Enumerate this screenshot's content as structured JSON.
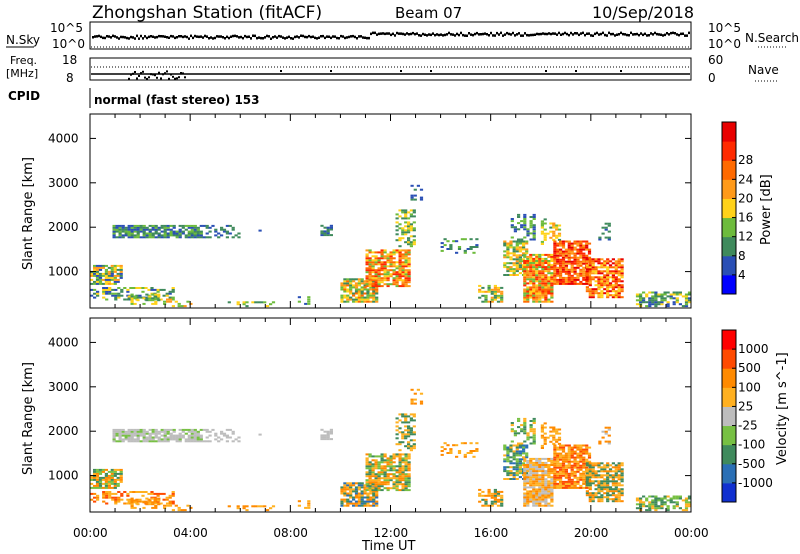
{
  "header": {
    "station": "Zhongshan Station (fitACF)",
    "beam": "Beam 07",
    "date": "10/Sep/2018"
  },
  "small_panels": {
    "nsky_label": "N.Sky",
    "nsearch_label": "N.Search",
    "nsky_ticks": [
      "10^5",
      "10^0"
    ],
    "nsearch_ticks": [
      "10^5",
      "10^0"
    ],
    "freq_label_line1": "Freq.",
    "freq_label_line2": "[MHz]",
    "freq_ticks": [
      "18",
      "8"
    ],
    "nave_label": "Nave",
    "nave_ticks": [
      "60",
      "0"
    ],
    "cpid_label": "CPID",
    "cpid_text": "normal (fast stereo) 153"
  },
  "chart_data": [
    {
      "type": "heatmap",
      "title": "",
      "xlabel": "Time UT",
      "ylabel": "Slant Range [km]",
      "x_ticks": [
        "00:00",
        "04:00",
        "08:00",
        "12:00",
        "16:00",
        "20:00",
        "00:00"
      ],
      "y_ticks": [
        "1000",
        "2000",
        "3000",
        "4000"
      ],
      "xlim_hours": [
        0,
        24
      ],
      "ylim_km": [
        180,
        4550
      ],
      "colorbar": {
        "label": "Power [dB]",
        "ticks": [
          "4",
          "8",
          "12",
          "16",
          "20",
          "24",
          "28"
        ],
        "colors": [
          "#0000ff",
          "#2a4fb5",
          "#3f8a5c",
          "#6dbb3c",
          "#ffd21a",
          "#ff9a1a",
          "#ff6a00",
          "#ff2a00",
          "#e80000"
        ]
      }
    },
    {
      "type": "heatmap",
      "title": "",
      "xlabel": "Time UT",
      "ylabel": "Slant Range [km]",
      "x_ticks": [
        "00:00",
        "04:00",
        "08:00",
        "12:00",
        "16:00",
        "20:00",
        "00:00"
      ],
      "y_ticks": [
        "1000",
        "2000",
        "3000",
        "4000"
      ],
      "xlim_hours": [
        0,
        24
      ],
      "ylim_km": [
        180,
        4550
      ],
      "colorbar": {
        "label": "Velocity [m s^-1]",
        "ticks": [
          "1000",
          "500",
          "100",
          "25",
          "-25",
          "-100",
          "-500",
          "-1000"
        ],
        "colors": [
          "#1030d0",
          "#2a6fb5",
          "#3f8a5c",
          "#77c043",
          "#bdbdbd",
          "#ffb020",
          "#ff8a00",
          "#ff4a00",
          "#ff0000"
        ]
      }
    }
  ],
  "colors": {
    "gray_scatter": "#bdbdbd"
  }
}
